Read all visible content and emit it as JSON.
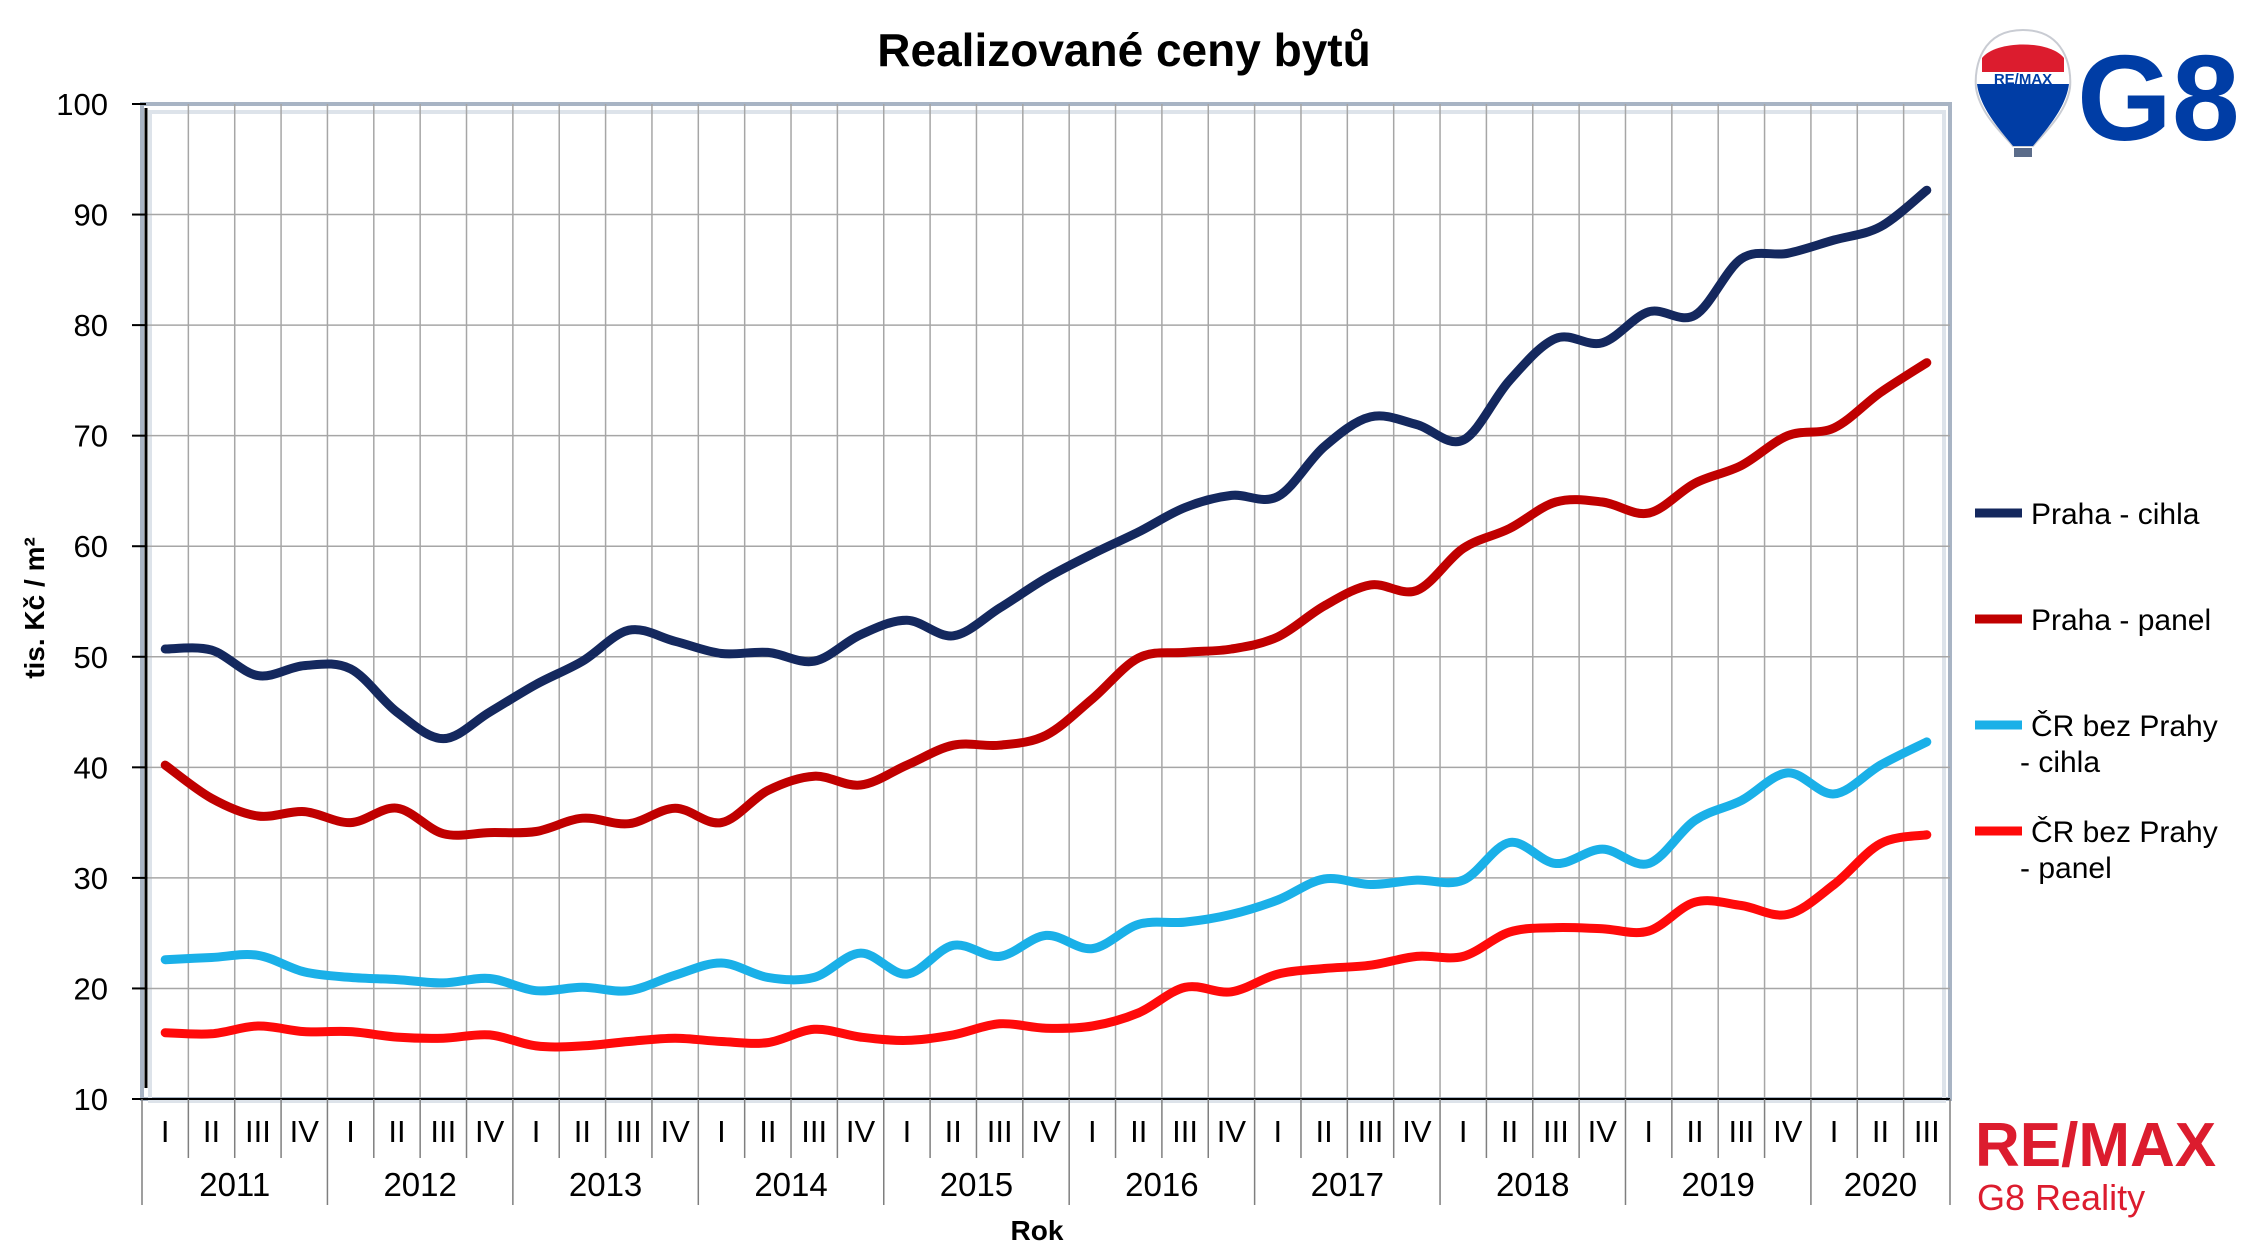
{
  "chart_data": {
    "type": "line",
    "title": "Realizované ceny bytů",
    "xlabel": "Rok",
    "ylabel": "tis. Kč / m²",
    "ylim": [
      10,
      100
    ],
    "yticks": [
      "10",
      "20",
      "30",
      "40",
      "50",
      "60",
      "70",
      "80",
      "90",
      "100"
    ],
    "grid": true,
    "legend_position": "right",
    "quarters": [
      "I",
      "II",
      "III",
      "IV",
      "I",
      "II",
      "III",
      "IV",
      "I",
      "II",
      "III",
      "IV",
      "I",
      "II",
      "III",
      "IV",
      "I",
      "II",
      "III",
      "IV",
      "I",
      "II",
      "III",
      "IV",
      "I",
      "II",
      "III",
      "IV",
      "I",
      "II",
      "III",
      "IV",
      "I",
      "II",
      "III",
      "IV",
      "I",
      "II",
      "III"
    ],
    "years": [
      "2011",
      "2012",
      "2013",
      "2014",
      "2015",
      "2016",
      "2017",
      "2018",
      "2019",
      "2020"
    ],
    "series": [
      {
        "name": "Praha - cihla",
        "color": "#14285e",
        "values": [
          50.7,
          50.6,
          48.3,
          49.2,
          48.9,
          45.0,
          42.6,
          45.0,
          47.5,
          49.6,
          52.4,
          51.4,
          50.3,
          50.4,
          49.6,
          52.0,
          53.3,
          51.9,
          54.4,
          57.1,
          59.3,
          61.3,
          63.5,
          64.6,
          64.5,
          69.0,
          71.7,
          71.0,
          69.6,
          75.0,
          78.8,
          78.4,
          81.2,
          80.9,
          86.0,
          86.5,
          87.7,
          88.9,
          92.2
        ]
      },
      {
        "name": "Praha - panel",
        "color": "#c00000",
        "values": [
          40.2,
          37.2,
          35.6,
          36.0,
          35.0,
          36.3,
          34.0,
          34.1,
          34.2,
          35.4,
          34.9,
          36.3,
          35.0,
          37.9,
          39.2,
          38.4,
          40.2,
          42.0,
          42.0,
          42.9,
          46.2,
          49.9,
          50.4,
          50.7,
          51.8,
          54.6,
          56.5,
          56.0,
          59.8,
          61.6,
          64.0,
          64.0,
          63.0,
          65.7,
          67.3,
          70.0,
          70.7,
          73.9,
          76.6
        ]
      },
      {
        "name": "ČR bez Prahy - cihla",
        "color": "#1ab0e8",
        "values": [
          22.6,
          22.8,
          23.0,
          21.5,
          21.0,
          20.8,
          20.5,
          20.9,
          19.8,
          20.1,
          19.8,
          21.2,
          22.3,
          21.0,
          21.0,
          23.2,
          21.3,
          23.9,
          22.9,
          24.8,
          23.6,
          25.8,
          26.0,
          26.7,
          28.0,
          29.9,
          29.4,
          29.8,
          29.8,
          33.2,
          31.3,
          32.6,
          31.3,
          35.2,
          37.0,
          39.5,
          37.6,
          40.2,
          42.3
        ]
      },
      {
        "name": "ČR bez Prahy - panel",
        "color": "#ff0a0a",
        "values": [
          16.0,
          15.9,
          16.6,
          16.1,
          16.1,
          15.6,
          15.5,
          15.8,
          14.8,
          14.8,
          15.2,
          15.5,
          15.2,
          15.1,
          16.3,
          15.6,
          15.3,
          15.8,
          16.8,
          16.4,
          16.6,
          17.8,
          20.1,
          19.7,
          21.3,
          21.8,
          22.1,
          22.9,
          22.9,
          25.1,
          25.5,
          25.4,
          25.2,
          27.8,
          27.5,
          26.7,
          29.4,
          33.1,
          33.9
        ]
      }
    ]
  },
  "legend": {
    "items": [
      {
        "line1": "Praha - cihla",
        "line2": ""
      },
      {
        "line1": "Praha - panel",
        "line2": ""
      },
      {
        "line1": "ČR bez Prahy",
        "line2": "- cihla"
      },
      {
        "line1": "ČR bez Prahy",
        "line2": "- panel"
      }
    ]
  },
  "branding": {
    "balloon_text": "RE/MAX",
    "g8_text": "G8",
    "remax_logo_text": "RE/MAX",
    "remax_sub_text": "G8 Reality",
    "remax_blue": "#003da5",
    "remax_red": "#dc1c2e"
  }
}
